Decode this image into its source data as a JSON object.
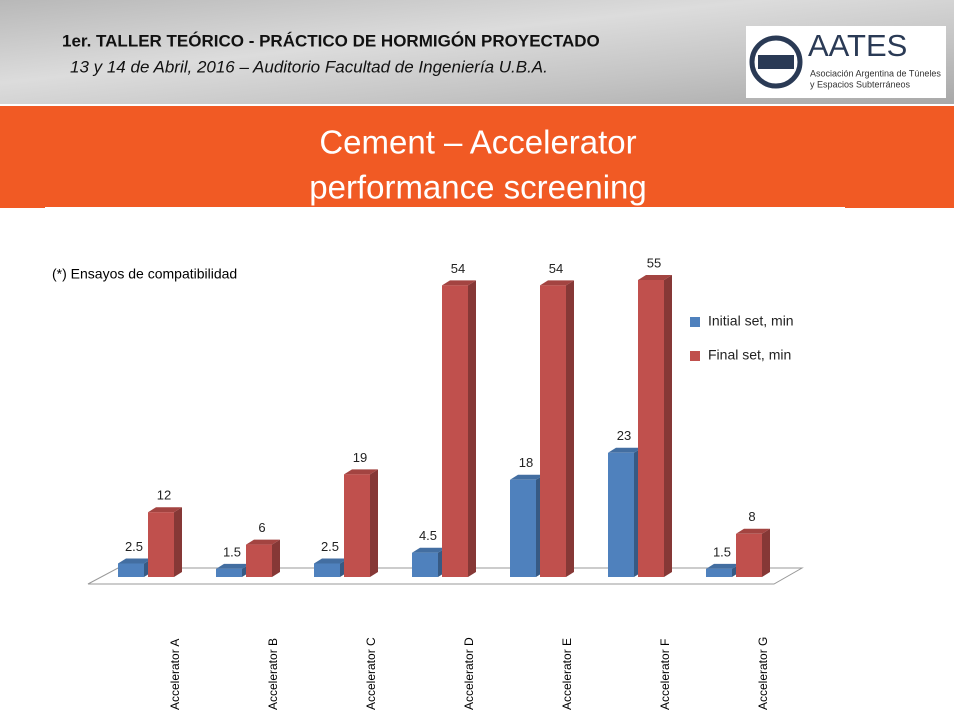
{
  "header": {
    "title": "1er. TALLER TEÓRICO - PRÁCTICO DE HORMIGÓN PROYECTADO",
    "subtitle": "13 y 14 de Abril, 2016 – Auditorio Facultad de Ingeniería U.B.A."
  },
  "logo": {
    "name": "AATES",
    "line1": "Asociación Argentina de Túneles",
    "line2": "y Espacios Subterráneos"
  },
  "slide_title": {
    "line1": "Cement – Accelerator",
    "line2": "performance screening"
  },
  "note": "(*)  Ensayos de compatibilidad",
  "chart_data": {
    "type": "bar3d",
    "categories": [
      "Accelerator A",
      "Accelerator B",
      "Accelerator C",
      "Accelerator D",
      "Accelerator E",
      "Accelerator F",
      "Accelerator G"
    ],
    "series": [
      {
        "name": "Initial set, min",
        "color": "#4f81bd",
        "values": [
          2.5,
          1.5,
          2.5,
          4.5,
          18,
          23,
          1.5
        ]
      },
      {
        "name": "Final set, min",
        "color": "#c0504d",
        "values": [
          12,
          6,
          19,
          54,
          54,
          55,
          8
        ]
      }
    ]
  }
}
